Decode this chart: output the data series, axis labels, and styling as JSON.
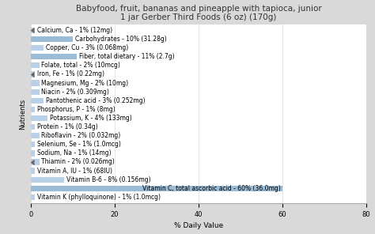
{
  "title": "Babyfood, fruit, bananas and pineapple with tapioca, junior\n1 jar Gerber Third Foods (6 oz) (170g)",
  "xlabel": "% Daily Value",
  "ylabel": "Nutrients",
  "xlim": [
    0,
    80
  ],
  "xticks": [
    0,
    20,
    40,
    60,
    80
  ],
  "background_color": "#d9d9d9",
  "plot_bg_color": "#ffffff",
  "bar_color_light": "#b8d0e8",
  "bar_color_dark": "#9bbcd6",
  "nutrients": [
    "Calcium, Ca - 1% (12mg)",
    "Carbohydrates - 10% (31.28g)",
    "Copper, Cu - 3% (0.068mg)",
    "Fiber, total dietary - 11% (2.7g)",
    "Folate, total - 2% (10mcg)",
    "Iron, Fe - 1% (0.22mg)",
    "Magnesium, Mg - 2% (10mg)",
    "Niacin - 2% (0.309mg)",
    "Pantothenic acid - 3% (0.252mg)",
    "Phosphorus, P - 1% (8mg)",
    "Potassium, K - 4% (133mg)",
    "Protein - 1% (0.34g)",
    "Riboflavin - 2% (0.032mg)",
    "Selenium, Se - 1% (1.0mcg)",
    "Sodium, Na - 1% (14mg)",
    "Thiamin - 2% (0.026mg)",
    "Vitamin A, IU - 1% (68IU)",
    "Vitamin B-6 - 8% (0.156mg)",
    "Vitamin C, total ascorbic acid - 60% (36.0mg)",
    "Vitamin K (phylloquinone) - 1% (1.0mcg)"
  ],
  "values": [
    1,
    10,
    3,
    11,
    2,
    1,
    2,
    2,
    3,
    1,
    4,
    1,
    2,
    1,
    1,
    2,
    1,
    8,
    60,
    1
  ],
  "title_fontsize": 7.5,
  "label_fontsize": 5.5,
  "axis_label_fontsize": 6.5,
  "tick_fontsize": 6,
  "ylabel_fontsize": 6
}
